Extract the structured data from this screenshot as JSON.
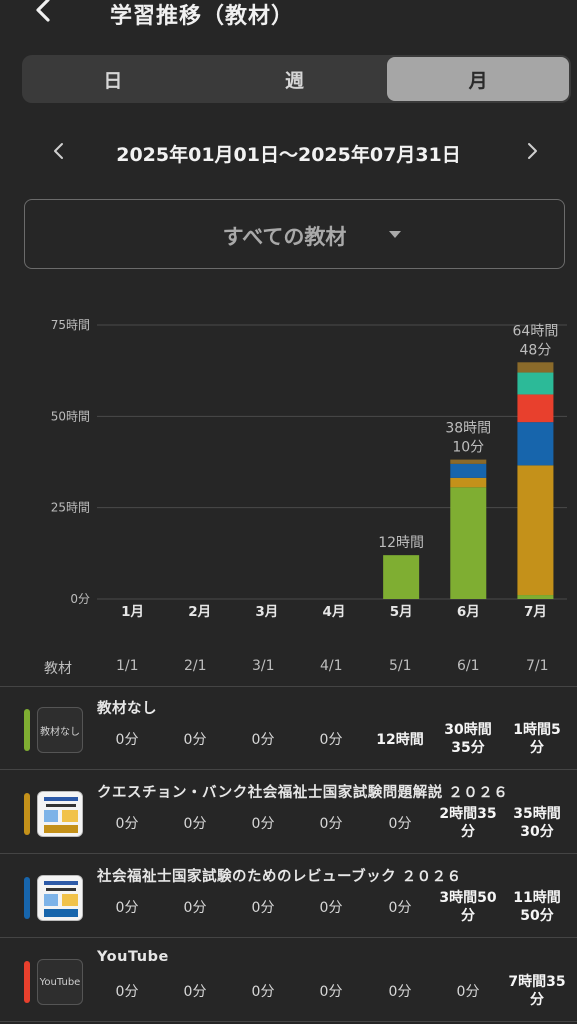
{
  "header": {
    "title": "学習推移（教材）"
  },
  "tabs": [
    {
      "label": "日",
      "active": false
    },
    {
      "label": "週",
      "active": false
    },
    {
      "label": "月",
      "active": true
    }
  ],
  "range": {
    "text": "2025年01月01日〜2025年07月31日"
  },
  "material_select": {
    "label": "すべての教材"
  },
  "chart_data": {
    "type": "bar",
    "stacked": true,
    "categories": [
      "1月",
      "2月",
      "3月",
      "4月",
      "5月",
      "6月",
      "7月"
    ],
    "y_ticks": [
      "0分",
      "25時間",
      "50時間",
      "75時間"
    ],
    "ylim": [
      0,
      75
    ],
    "grid": true,
    "series": [
      {
        "name": "教材なし",
        "color": "#7fae32",
        "values": [
          0,
          0,
          0,
          0,
          12.0,
          30.58,
          1.08
        ]
      },
      {
        "name": "クエスチョン・バンク社会福祉士国家試験問題解説 ２０２６",
        "color": "#c4911a",
        "values": [
          0,
          0,
          0,
          0,
          0,
          2.58,
          35.5
        ]
      },
      {
        "name": "社会福祉士国家試験のためのレビューブック ２０２６",
        "color": "#1765ac",
        "values": [
          0,
          0,
          0,
          0,
          0,
          3.83,
          11.83
        ]
      },
      {
        "name": "YouTube",
        "color": "#e8402d",
        "values": [
          0,
          0,
          0,
          0,
          0,
          0,
          7.58
        ]
      },
      {
        "color": "#2cba98",
        "values": [
          0,
          0,
          0,
          0,
          0,
          0,
          6.0
        ]
      },
      {
        "color": "#8a6a2a",
        "values": [
          0,
          0,
          0,
          0,
          0,
          1.17,
          2.8
        ]
      }
    ],
    "total_labels": [
      "",
      "",
      "",
      "",
      "12時間",
      "38時間\n10分",
      "64時間\n48分"
    ]
  },
  "table": {
    "header_label": "教材",
    "columns": [
      "1/1",
      "2/1",
      "3/1",
      "4/1",
      "5/1",
      "6/1",
      "7/1"
    ],
    "rows": [
      {
        "name": "教材なし",
        "thumb_text": "教材なし",
        "color": "#7fae32",
        "thumb": "text",
        "cells": [
          "0分",
          "0分",
          "0分",
          "0分",
          "12時間",
          "30時間\n35分",
          "1時間5\n分"
        ]
      },
      {
        "name": "クエスチョン・バンク社会福祉士国家試験問題解説 ２０２６",
        "color": "#c4911a",
        "thumb": "book",
        "cells": [
          "0分",
          "0分",
          "0分",
          "0分",
          "0分",
          "2時間35\n分",
          "35時間\n30分"
        ]
      },
      {
        "name": "社会福祉士国家試験のためのレビューブック ２０２６",
        "color": "#1765ac",
        "thumb": "book",
        "cells": [
          "0分",
          "0分",
          "0分",
          "0分",
          "0分",
          "3時間50\n分",
          "11時間\n50分"
        ]
      },
      {
        "name": "YouTube",
        "thumb_text": "YouTube",
        "color": "#e8402d",
        "thumb": "text",
        "cells": [
          "0分",
          "0分",
          "0分",
          "0分",
          "0分",
          "0分",
          "7時間35\n分"
        ]
      }
    ]
  }
}
